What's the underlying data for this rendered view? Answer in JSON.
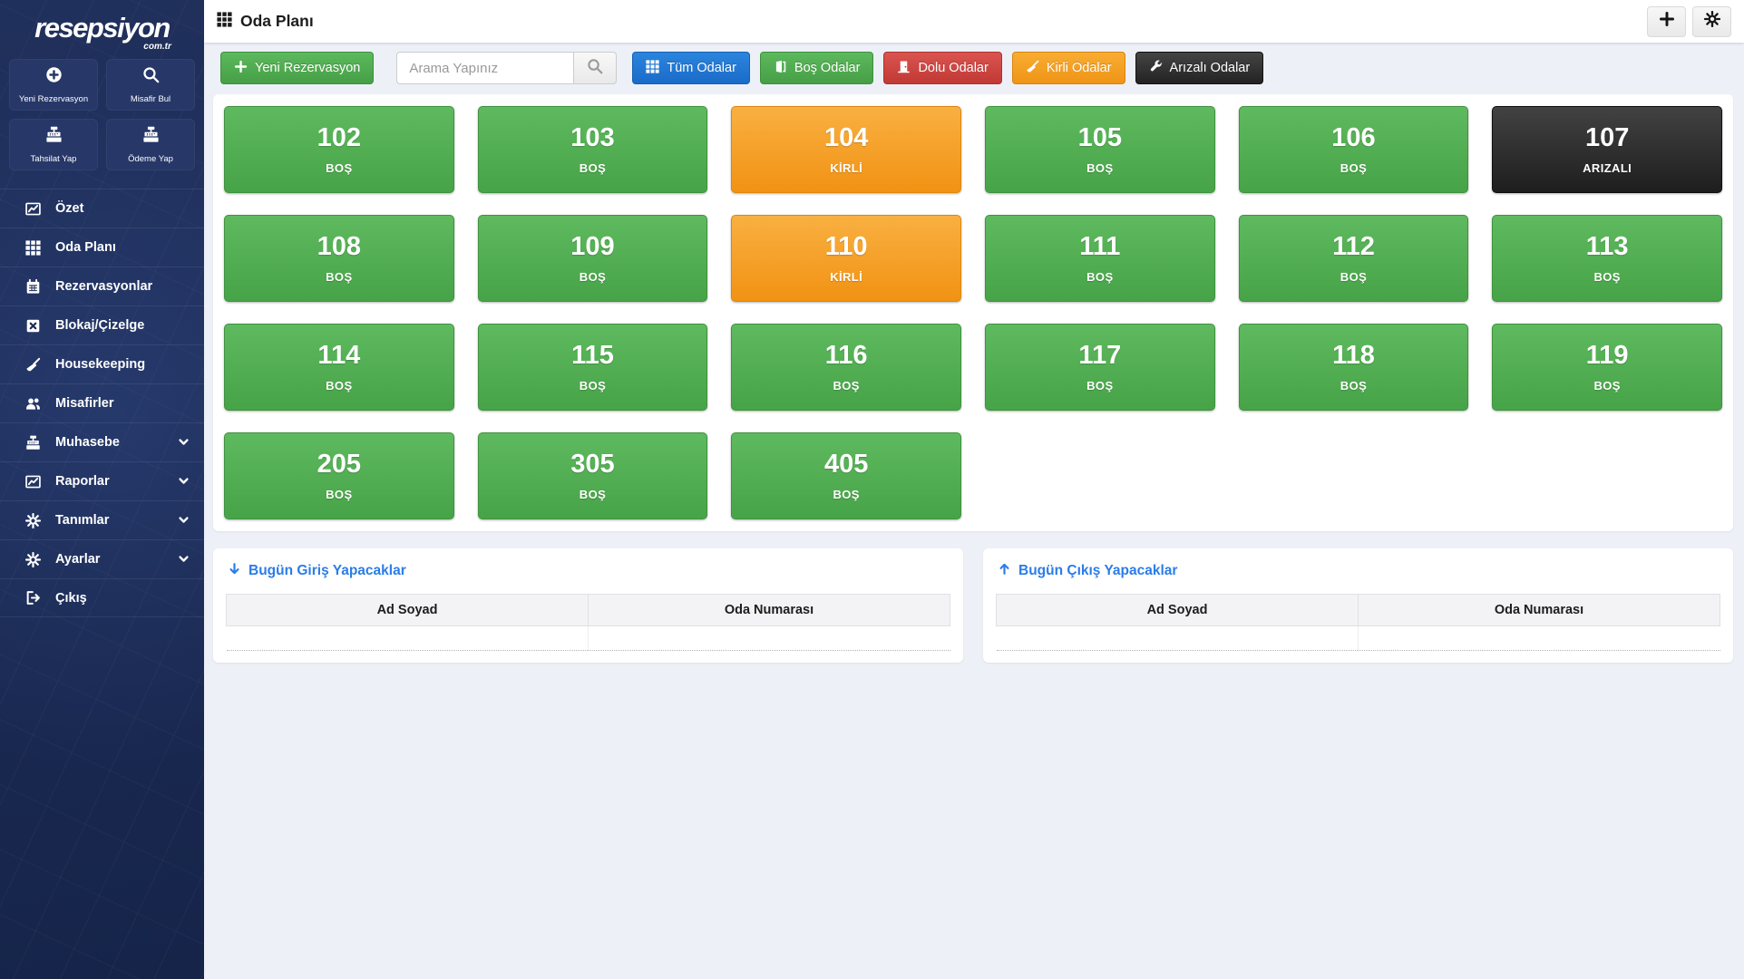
{
  "brand": {
    "name": "resepsiyon",
    "tld": "com.tr"
  },
  "header": {
    "title": "Oda Planı"
  },
  "sidebar": {
    "quick_actions": [
      {
        "label": "Yeni Rezervasyon",
        "icon": "plus-circle-icon"
      },
      {
        "label": "Misafir Bul",
        "icon": "search-icon"
      },
      {
        "label": "Tahsilat Yap",
        "icon": "cash-register-icon"
      },
      {
        "label": "Ödeme Yap",
        "icon": "cash-register-icon"
      }
    ],
    "items": [
      {
        "label": "Özet",
        "icon": "chart-line-icon",
        "chevron": false
      },
      {
        "label": "Oda Planı",
        "icon": "grid-icon",
        "chevron": false
      },
      {
        "label": "Rezervasyonlar",
        "icon": "calendar-icon",
        "chevron": false
      },
      {
        "label": "Blokaj/Çizelge",
        "icon": "square-x-icon",
        "chevron": false
      },
      {
        "label": "Housekeeping",
        "icon": "broom-icon",
        "chevron": false
      },
      {
        "label": "Misafirler",
        "icon": "users-icon",
        "chevron": false
      },
      {
        "label": "Muhasebe",
        "icon": "cash-register-icon",
        "chevron": true
      },
      {
        "label": "Raporlar",
        "icon": "chart-line-icon",
        "chevron": true
      },
      {
        "label": "Tanımlar",
        "icon": "gear-icon",
        "chevron": true
      },
      {
        "label": "Ayarlar",
        "icon": "gear-icon",
        "chevron": true
      },
      {
        "label": "Çıkış",
        "icon": "sign-out-icon",
        "chevron": false
      }
    ]
  },
  "toolbar": {
    "new_reservation_label": "Yeni Rezervasyon",
    "search_placeholder": "Arama Yapınız",
    "filters": [
      {
        "label": "Tüm Odalar",
        "state": "all",
        "icon": "grid-icon",
        "color": "#1f77d0"
      },
      {
        "label": "Boş Odalar",
        "state": "empty",
        "icon": "door-open-icon",
        "color": "#5cb85c"
      },
      {
        "label": "Dolu Odalar",
        "state": "occupied",
        "icon": "door-closed-icon",
        "color": "#d9534f"
      },
      {
        "label": "Kirli Odalar",
        "state": "dirty",
        "icon": "broom-icon",
        "color": "#f0ad4e"
      },
      {
        "label": "Arızalı Odalar",
        "state": "broken",
        "icon": "wrench-icon",
        "color": "#333333"
      }
    ]
  },
  "rooms": [
    {
      "number": "102",
      "status": "BOŞ",
      "state": "empty"
    },
    {
      "number": "103",
      "status": "BOŞ",
      "state": "empty"
    },
    {
      "number": "104",
      "status": "KİRLİ",
      "state": "dirty"
    },
    {
      "number": "105",
      "status": "BOŞ",
      "state": "empty"
    },
    {
      "number": "106",
      "status": "BOŞ",
      "state": "empty"
    },
    {
      "number": "107",
      "status": "ARIZALI",
      "state": "broken"
    },
    {
      "number": "108",
      "status": "BOŞ",
      "state": "empty"
    },
    {
      "number": "109",
      "status": "BOŞ",
      "state": "empty"
    },
    {
      "number": "110",
      "status": "KİRLİ",
      "state": "dirty"
    },
    {
      "number": "111",
      "status": "BOŞ",
      "state": "empty"
    },
    {
      "number": "112",
      "status": "BOŞ",
      "state": "empty"
    },
    {
      "number": "113",
      "status": "BOŞ",
      "state": "empty"
    },
    {
      "number": "114",
      "status": "BOŞ",
      "state": "empty"
    },
    {
      "number": "115",
      "status": "BOŞ",
      "state": "empty"
    },
    {
      "number": "116",
      "status": "BOŞ",
      "state": "empty"
    },
    {
      "number": "117",
      "status": "BOŞ",
      "state": "empty"
    },
    {
      "number": "118",
      "status": "BOŞ",
      "state": "empty"
    },
    {
      "number": "119",
      "status": "BOŞ",
      "state": "empty"
    },
    {
      "number": "205",
      "status": "BOŞ",
      "state": "empty"
    },
    {
      "number": "305",
      "status": "BOŞ",
      "state": "empty"
    },
    {
      "number": "405",
      "status": "BOŞ",
      "state": "empty"
    }
  ],
  "panels": [
    {
      "id": "checkin",
      "title": "Bugün Giriş Yapacaklar",
      "icon": "arrow-down-icon",
      "columns": [
        "Ad Soyad",
        "Oda Numarası"
      ],
      "rows": []
    },
    {
      "id": "checkout",
      "title": "Bugün Çıkış Yapacaklar",
      "icon": "arrow-up-icon",
      "columns": [
        "Ad Soyad",
        "Oda Numarası"
      ],
      "rows": []
    }
  ],
  "colors": {
    "sidebar_bg": "#1b2a53",
    "link_accent": "#2b7ce9",
    "room_empty": "#4fae4f",
    "room_dirty": "#f49e23",
    "room_broken": "#2c2c2c",
    "filter_all": "#1f77d0",
    "filter_occupied": "#d9534f"
  }
}
